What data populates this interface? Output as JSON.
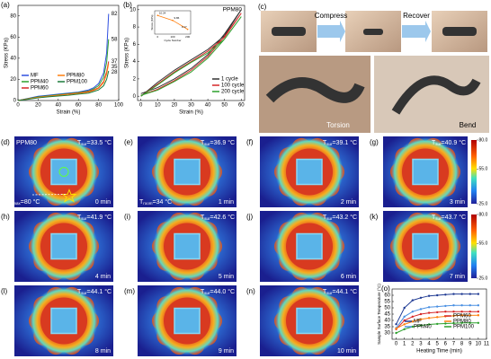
{
  "chart_data": [
    {
      "type": "line",
      "label": "(a)",
      "xlabel": "Strain (%)",
      "ylabel": "Stress (KPa)",
      "x": [
        0,
        10,
        20,
        30,
        40,
        50,
        60,
        70,
        75,
        80,
        85,
        88,
        90
      ],
      "series": [
        {
          "name": "MF",
          "color": "#3050e0",
          "values": [
            0,
            2,
            4,
            5,
            6,
            7,
            8,
            10,
            12,
            16,
            26,
            45,
            82
          ]
        },
        {
          "name": "PPM40",
          "color": "#2ca02c",
          "values": [
            0,
            1.8,
            3.5,
            4.5,
            5.5,
            6.5,
            7.5,
            9,
            11,
            14,
            22,
            36,
            58
          ]
        },
        {
          "name": "PPM60",
          "color": "#d62728",
          "values": [
            0,
            1.5,
            3,
            4,
            5,
            6,
            7,
            8.5,
            10,
            12,
            18,
            27,
            37
          ]
        },
        {
          "name": "PPM80",
          "color": "#ff7f0e",
          "values": [
            0,
            1.5,
            3,
            4,
            5,
            5.8,
            6.8,
            8,
            9.5,
            11.5,
            17,
            25,
            35
          ]
        },
        {
          "name": "PPM100",
          "color": "#1a7a3a",
          "values": [
            0,
            1.2,
            2.5,
            3.5,
            4.3,
            5,
            6,
            7,
            8.5,
            10,
            14,
            20,
            28
          ]
        }
      ],
      "end_labels": true,
      "xlim": [
        0,
        100
      ],
      "xticks": [
        0,
        20,
        40,
        60,
        80,
        100
      ],
      "ylim": [
        0,
        90
      ],
      "yticks": [
        0,
        20,
        40,
        60,
        80
      ]
    },
    {
      "type": "line",
      "label": "(b)",
      "title": "PPM80",
      "xlabel": "Strain (%)",
      "ylabel": "Stress (KPa)",
      "x": [
        0,
        10,
        20,
        30,
        40,
        50,
        60,
        50,
        40,
        30,
        20,
        10,
        0
      ],
      "series": [
        {
          "name": "1 cycle",
          "color": "#333333",
          "values": [
            0,
            1.6,
            3.0,
            4.2,
            5.4,
            7.0,
            10.0,
            7.2,
            4.8,
            3.2,
            2.0,
            1.0,
            0.3
          ]
        },
        {
          "name": "100 cycle",
          "color": "#d62728",
          "values": [
            0,
            1.4,
            2.8,
            4.0,
            5.2,
            6.8,
            9.6,
            6.9,
            4.6,
            3.0,
            1.8,
            0.8,
            0.1
          ]
        },
        {
          "name": "200 cycle",
          "color": "#2ca02c",
          "values": [
            0,
            1.3,
            2.7,
            3.9,
            5.0,
            6.6,
            9.2,
            6.6,
            4.4,
            2.8,
            1.7,
            0.7,
            0.1
          ]
        }
      ],
      "xlim": [
        -2,
        62
      ],
      "xticks": [
        0,
        10,
        20,
        30,
        40,
        50,
        60
      ],
      "ylim": [
        -0.5,
        10.5
      ],
      "yticks": [
        0,
        2,
        4,
        6,
        8,
        10
      ],
      "inset": {
        "xlabel": "Cycle Number",
        "ylabel": "Stress (KPa)",
        "color": "#ff7f0e",
        "x": [
          0,
          100,
          200
        ],
        "values": [
          10.24,
          9.86,
          9.17
        ],
        "xlim": [
          -20,
          220
        ],
        "ylim": [
          8.8,
          10.6
        ],
        "xticks": [
          0,
          100,
          200
        ]
      }
    },
    {
      "type": "line",
      "label": "(o)",
      "xlabel": "Heating Time (min)",
      "ylabel": "Sample Surface Temperature (°C)",
      "x": [
        0,
        1,
        2,
        3,
        4,
        5,
        6,
        7,
        8,
        9,
        10
      ],
      "series": [
        {
          "name": "MF",
          "color": "#1f3a93",
          "values": [
            37,
            50,
            56,
            58,
            59.5,
            60,
            60.5,
            61,
            61,
            61,
            61
          ]
        },
        {
          "name": "PPM40",
          "color": "#4a90e2",
          "values": [
            34,
            43,
            47,
            49,
            50.5,
            51,
            51.5,
            52,
            52,
            52,
            52
          ]
        },
        {
          "name": "PPM60",
          "color": "#d62728",
          "values": [
            33,
            40,
            43,
            45,
            46,
            46.5,
            47,
            47,
            47,
            47,
            47
          ]
        },
        {
          "name": "PPM80",
          "color": "#ff7f0e",
          "values": [
            33.5,
            36.9,
            39.1,
            40.9,
            41.9,
            42.6,
            43.2,
            43.7,
            44.1,
            44.0,
            44.1
          ]
        },
        {
          "name": "PPM100",
          "color": "#2ca02c",
          "values": [
            30,
            33,
            35,
            36,
            36.8,
            37.2,
            37.5,
            37.8,
            38,
            38,
            38
          ]
        }
      ],
      "markers": true,
      "xlim": [
        -0.5,
        11
      ],
      "xticks": [
        0,
        1,
        2,
        3,
        4,
        5,
        6,
        7,
        8,
        9,
        10,
        11
      ],
      "ylim": [
        25,
        65
      ],
      "yticks": [
        30,
        35,
        40,
        45,
        50,
        55,
        60
      ]
    }
  ],
  "photos": {
    "label": "(c)",
    "compress": "Compress",
    "recover": "Recover",
    "torsion": "Torsion",
    "bend": "Bend"
  },
  "thermal": {
    "sample": "PPM80",
    "symbol": "T",
    "sur_sub": "sur",
    "max_sub": "max",
    "max_text": "=80 °C",
    "room_sub": "room",
    "room_text": "=34 °C",
    "colorbar": {
      "lim": [
        25,
        80
      ],
      "ticks": [
        {
          "value": 80,
          "label": "80.0"
        },
        {
          "value": 55,
          "label": "55.0"
        },
        {
          "value": 25,
          "label": "25.0"
        }
      ]
    },
    "panels": [
      {
        "label": "(d)",
        "temp": "=33.5 °C",
        "time": "0 min"
      },
      {
        "label": "(e)",
        "temp": "=36.9 °C",
        "time": "1 min"
      },
      {
        "label": "(f)",
        "temp": "=39.1 °C",
        "time": "2 min"
      },
      {
        "label": "(g)",
        "temp": "=40.9 °C",
        "time": "3 min"
      },
      {
        "label": "(h)",
        "temp": "=41.9 °C",
        "time": "4 min"
      },
      {
        "label": "(i)",
        "temp": "=42.6 °C",
        "time": "5 min"
      },
      {
        "label": "(j)",
        "temp": "=43.2 °C",
        "time": "6 min"
      },
      {
        "label": "(k)",
        "temp": "=43.7 °C",
        "time": "7 min"
      },
      {
        "label": "(l)",
        "temp": "=44.1 °C",
        "time": "8 min"
      },
      {
        "label": "(m)",
        "temp": "=44.0 °C",
        "time": "9 min"
      },
      {
        "label": "(n)",
        "temp": "=44.1 °C",
        "time": "10 min"
      }
    ]
  }
}
